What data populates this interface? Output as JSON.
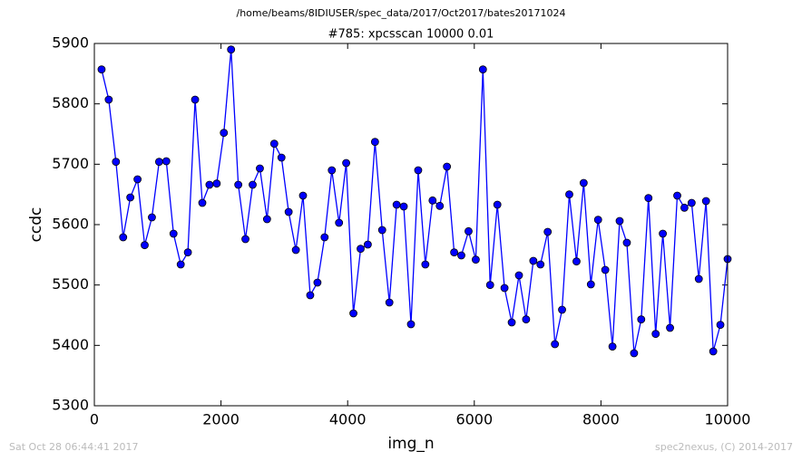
{
  "chart_data": {
    "type": "line",
    "title": "/home/beams/8IDIUSER/spec_data/2017/Oct2017/bates20171024",
    "subtitle": "#785: xpcsscan 10000 0.01",
    "x_label": "img_n",
    "y_label": "ccdc",
    "x": [
      114,
      227,
      341,
      455,
      568,
      682,
      795,
      909,
      1023,
      1136,
      1250,
      1364,
      1477,
      1591,
      1705,
      1818,
      1932,
      2045,
      2159,
      2273,
      2386,
      2500,
      2614,
      2727,
      2841,
      2955,
      3068,
      3182,
      3295,
      3409,
      3523,
      3636,
      3750,
      3864,
      3977,
      4091,
      4205,
      4318,
      4432,
      4545,
      4659,
      4773,
      4886,
      5000,
      5114,
      5227,
      5341,
      5455,
      5568,
      5682,
      5795,
      5909,
      6023,
      6136,
      6250,
      6364,
      6477,
      6591,
      6705,
      6818,
      6932,
      7045,
      7159,
      7273,
      7386,
      7500,
      7614,
      7727,
      7841,
      7955,
      8068,
      8182,
      8295,
      8409,
      8523,
      8636,
      8750,
      8864,
      8977,
      9091,
      9205,
      9318,
      9432,
      9545,
      9659,
      9773,
      9886,
      10000
    ],
    "series": [
      {
        "name": "ccdc",
        "color": "#0000ff",
        "values": [
          5857,
          5807,
          5704,
          5579,
          5645,
          5675,
          5566,
          5612,
          5704,
          5705,
          5585,
          5534,
          5554,
          5807,
          5636,
          5666,
          5668,
          5752,
          5890,
          5666,
          5576,
          5666,
          5693,
          5609,
          5734,
          5711,
          5621,
          5558,
          5648,
          5483,
          5504,
          5579,
          5690,
          5603,
          5702,
          5453,
          5560,
          5567,
          5737,
          5591,
          5471,
          5633,
          5630,
          5435,
          5690,
          5534,
          5640,
          5631,
          5696,
          5554,
          5549,
          5589,
          5542,
          5857,
          5500,
          5633,
          5495,
          5438,
          5516,
          5443,
          5540,
          5534,
          5588,
          5402,
          5459,
          5650,
          5539,
          5669,
          5501,
          5608,
          5525,
          5398,
          5606,
          5570,
          5387,
          5443,
          5644,
          5419,
          5585,
          5429,
          5648,
          5628,
          5636,
          5510,
          5639,
          5390,
          5434,
          5543
        ]
      }
    ],
    "xlim": [
      0,
      10000
    ],
    "xticks": [
      0,
      2000,
      4000,
      6000,
      8000,
      10000
    ],
    "ylim": [
      5300,
      5900
    ],
    "yticks": [
      5300,
      5400,
      5500,
      5600,
      5700,
      5800,
      5900
    ],
    "grid": false
  },
  "footer": {
    "timestamp": "Sat Oct 28 06:44:41 2017",
    "credit": "spec2nexus, (C) 2014-2017"
  }
}
